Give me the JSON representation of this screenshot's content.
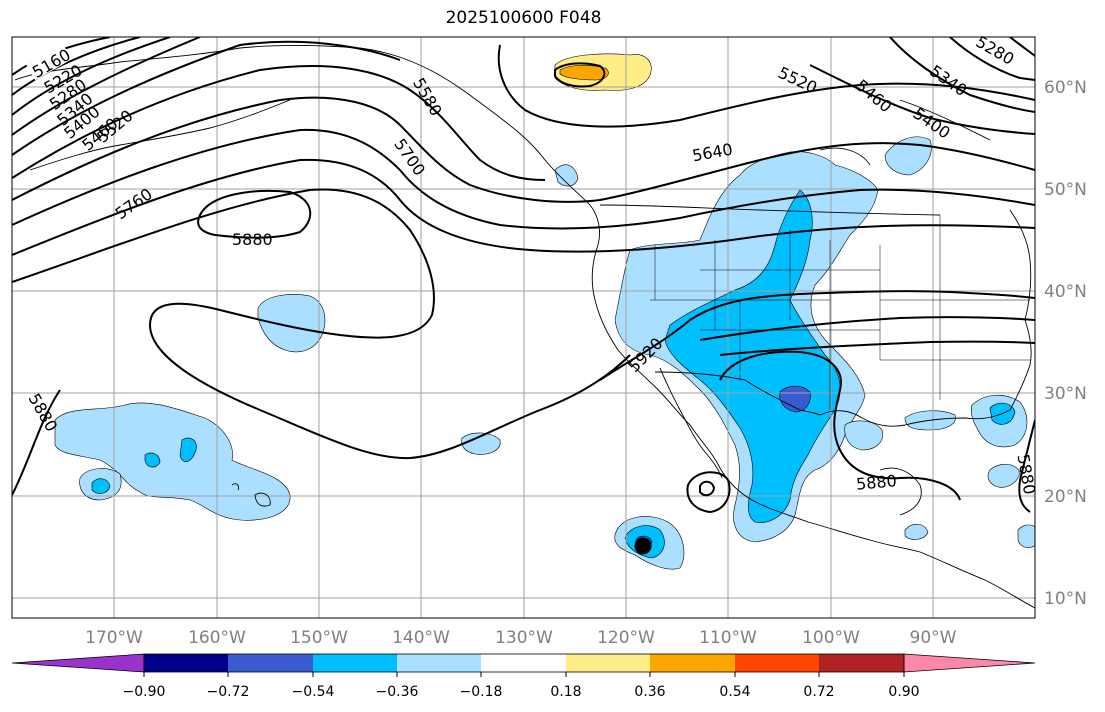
{
  "title": "2025100600 F048",
  "map": {
    "lon_range": [
      -180,
      -80
    ],
    "lat_range": [
      8,
      65
    ],
    "lon_ticks": [
      "170°W",
      "160°W",
      "150°W",
      "140°W",
      "130°W",
      "120°W",
      "110°W",
      "100°W",
      "90°W"
    ],
    "lat_ticks": [
      "60°N",
      "50°N",
      "40°N",
      "30°N",
      "20°N",
      "10°N"
    ],
    "contour_labels": [
      "5160",
      "5220",
      "5280",
      "5340",
      "5400",
      "5460",
      "5520",
      "5580",
      "5640",
      "5700",
      "5760",
      "5880",
      "5920",
      "5880",
      "5880",
      "5880",
      "5520",
      "5460",
      "5400",
      "5340",
      "5280"
    ],
    "marker": {
      "lon": -118.0,
      "lat": 15.2
    }
  },
  "colorbar": {
    "colors": [
      "#9933cc",
      "#00008b",
      "#3a5bcf",
      "#00bfff",
      "#aadfff",
      "#ffffff",
      "#ffee88",
      "#ffa500",
      "#ff4500",
      "#b22222",
      "#ff88aa"
    ],
    "tick_labels": [
      "−0.90",
      "−0.72",
      "−0.54",
      "−0.36",
      "−0.18",
      "0.18",
      "0.36",
      "0.54",
      "0.72",
      "0.90"
    ]
  }
}
